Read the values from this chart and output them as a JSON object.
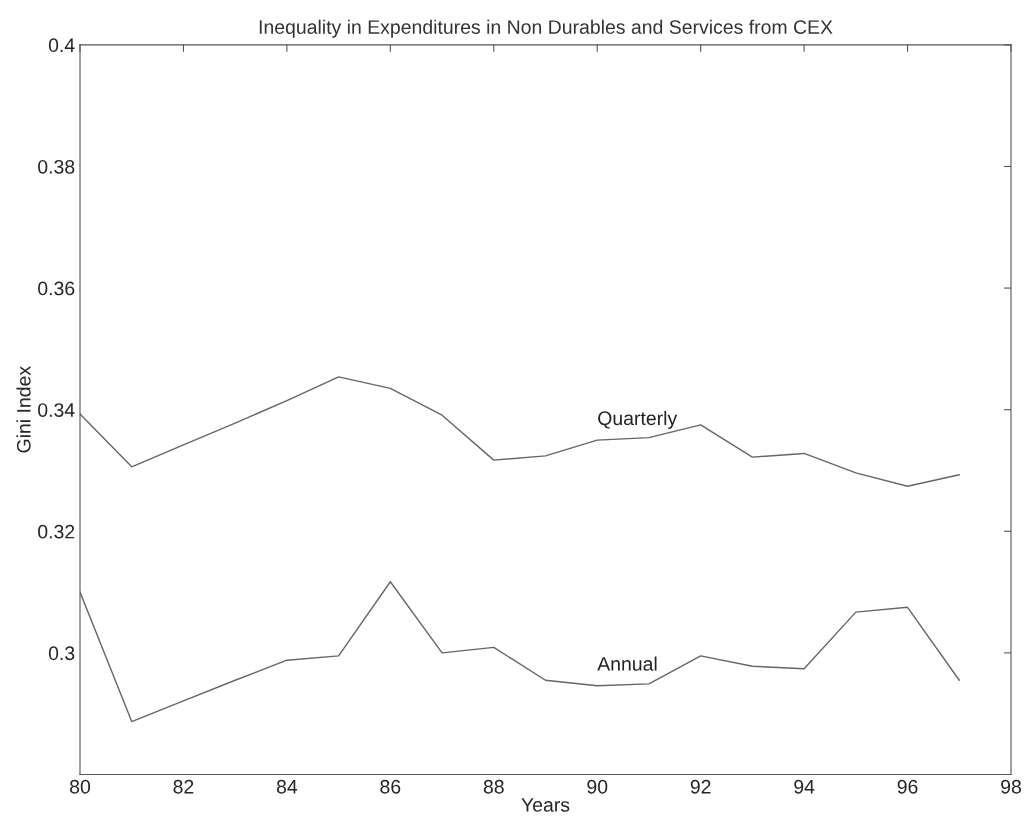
{
  "chart_data": {
    "type": "line",
    "title": "Inequality in Expenditures in Non Durables and Services from CEX",
    "xlabel": "Years",
    "ylabel": "Gini Index",
    "x": [
      80,
      81,
      82,
      83,
      84,
      85,
      86,
      87,
      88,
      89,
      90,
      91,
      92,
      93,
      94,
      95,
      96,
      97
    ],
    "series": [
      {
        "name": "Quarterly",
        "color": "#666666",
        "values": [
          0.3393,
          0.3306,
          0.3342,
          0.3378,
          0.3415,
          0.3454,
          0.3435,
          0.3391,
          0.3317,
          0.3324,
          0.335,
          0.3354,
          0.3375,
          0.3322,
          0.3328,
          0.3296,
          0.3274,
          0.3293
        ]
      },
      {
        "name": "Annual",
        "color": "#666666",
        "values": [
          0.31,
          0.2887,
          0.2921,
          0.2955,
          0.2988,
          0.2995,
          0.3117,
          0.3,
          0.3009,
          0.2955,
          0.2946,
          0.2949,
          0.2995,
          0.2978,
          0.2974,
          0.3067,
          0.3075,
          0.2955
        ]
      }
    ],
    "xlim": [
      80,
      98
    ],
    "xticks": [
      80,
      82,
      84,
      86,
      88,
      90,
      92,
      94,
      96,
      98
    ],
    "ylim": [
      0.28,
      0.4
    ],
    "yticks": [
      0.3,
      0.32,
      0.34,
      0.36,
      0.38,
      0.4
    ],
    "grid": false,
    "legend": false,
    "marker": "none",
    "line_style": "solid"
  }
}
